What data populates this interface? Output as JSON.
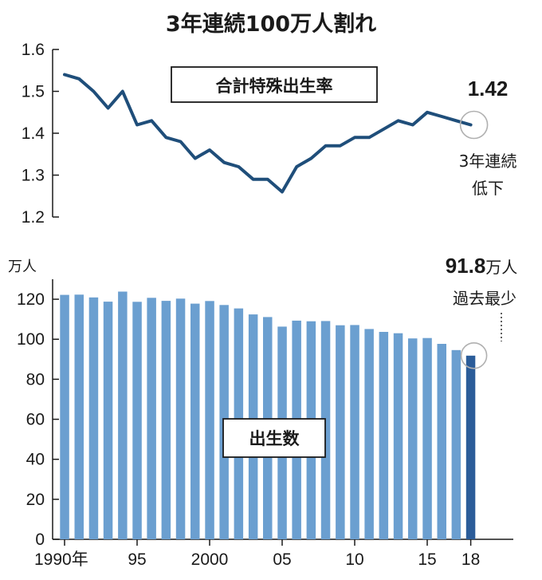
{
  "chart_data": [
    {
      "type": "line",
      "title": "3年連続100万人割れ",
      "label": "合計特殊出生率",
      "ylim": [
        1.2,
        1.6
      ],
      "y_ticks": [
        "1.6",
        "1.5",
        "1.4",
        "1.3",
        "1.2"
      ],
      "x": [
        1990,
        1991,
        1992,
        1993,
        1994,
        1995,
        1996,
        1997,
        1998,
        1999,
        2000,
        2001,
        2002,
        2003,
        2004,
        2005,
        2006,
        2007,
        2008,
        2009,
        2010,
        2011,
        2012,
        2013,
        2014,
        2015,
        2016,
        2017,
        2018
      ],
      "values": [
        1.54,
        1.53,
        1.5,
        1.46,
        1.5,
        1.42,
        1.43,
        1.39,
        1.38,
        1.34,
        1.36,
        1.33,
        1.32,
        1.29,
        1.29,
        1.26,
        1.32,
        1.34,
        1.37,
        1.37,
        1.39,
        1.39,
        1.41,
        1.43,
        1.42,
        1.45,
        1.44,
        1.43,
        1.42
      ],
      "color": "#1f4e7a",
      "callout_value": "1.42",
      "callout_note_line1": "3年連続",
      "callout_note_line2": "低下"
    },
    {
      "type": "bar",
      "label": "出生数",
      "unit": "万人",
      "ylim": [
        0,
        130
      ],
      "y_ticks": [
        "120",
        "100",
        "80",
        "60",
        "40",
        "20",
        "0"
      ],
      "x_tick_labels": [
        "1990年",
        "95",
        "2000",
        "05",
        "10",
        "15",
        "18"
      ],
      "x": [
        1990,
        1991,
        1992,
        1993,
        1994,
        1995,
        1996,
        1997,
        1998,
        1999,
        2000,
        2001,
        2002,
        2003,
        2004,
        2005,
        2006,
        2007,
        2008,
        2009,
        2010,
        2011,
        2012,
        2013,
        2014,
        2015,
        2016,
        2017,
        2018
      ],
      "values": [
        122.2,
        122.3,
        120.9,
        118.8,
        123.8,
        118.7,
        120.7,
        119.2,
        120.3,
        117.8,
        119.1,
        117.1,
        115.4,
        112.4,
        111.1,
        106.3,
        109.3,
        109.0,
        109.1,
        107.0,
        107.1,
        105.1,
        103.7,
        103.0,
        100.4,
        100.6,
        97.7,
        94.6,
        91.8
      ],
      "color": "#6b9fd0",
      "highlight_color": "#2b5c99",
      "callout_value": "91.8",
      "callout_unit": "万人",
      "callout_note": "過去最少"
    }
  ]
}
